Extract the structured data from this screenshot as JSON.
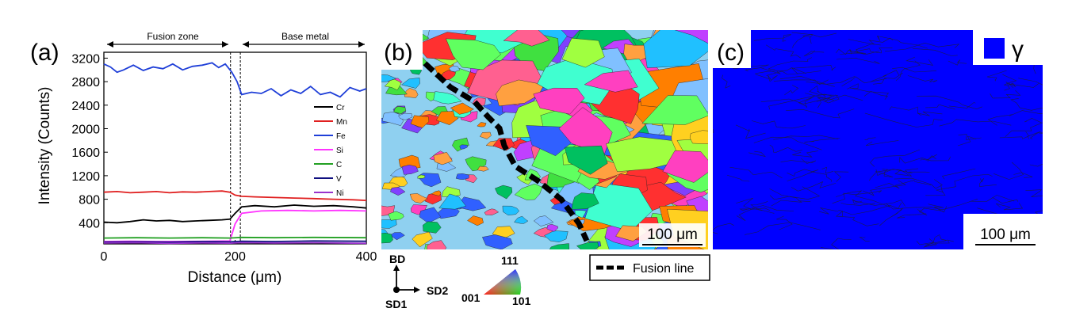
{
  "panels": {
    "a": {
      "label": "(a)",
      "zones": {
        "left": "Fusion zone",
        "right": "Base metal"
      },
      "chart_data": {
        "type": "line",
        "xlabel": "Distance (μm)",
        "ylabel": "Intensity (Counts)",
        "xlim": [
          0,
          400
        ],
        "ylim": [
          40,
          3300
        ],
        "x_ticks": [
          0,
          200,
          400
        ],
        "y_ticks": [
          400,
          800,
          1200,
          1600,
          2000,
          2400,
          2800,
          3200
        ],
        "fusion_boundaries": [
          193,
          208
        ],
        "legend_position": "right",
        "series": [
          {
            "name": "Cr",
            "color": "#000000",
            "x": [
              0,
              20,
              40,
              60,
              80,
              100,
              120,
              140,
              160,
              180,
              192,
              200,
              210,
              230,
              260,
              290,
              320,
              350,
              380,
              400
            ],
            "values": [
              410,
              400,
              420,
              450,
              430,
              440,
              420,
              430,
              440,
              450,
              460,
              560,
              670,
              690,
              670,
              700,
              680,
              690,
              670,
              650
            ]
          },
          {
            "name": "Mn",
            "color": "#e02020",
            "x": [
              0,
              20,
              40,
              60,
              80,
              100,
              120,
              140,
              160,
              180,
              192,
              200,
              210,
              230,
              260,
              290,
              320,
              350,
              380,
              400
            ],
            "values": [
              920,
              930,
              910,
              920,
              930,
              910,
              925,
              920,
              930,
              940,
              920,
              870,
              850,
              840,
              830,
              820,
              810,
              800,
              790,
              780
            ]
          },
          {
            "name": "Fe",
            "color": "#1f3fd8",
            "x": [
              0,
              10,
              20,
              30,
              45,
              60,
              75,
              90,
              105,
              120,
              135,
              150,
              165,
              175,
              185,
              195,
              203,
              210,
              225,
              240,
              255,
              270,
              285,
              300,
              315,
              330,
              345,
              360,
              375,
              390,
              400
            ],
            "values": [
              3100,
              3050,
              2960,
              3000,
              3080,
              2990,
              3050,
              3020,
              3100,
              3000,
              3060,
              3080,
              3120,
              3040,
              3100,
              2960,
              2800,
              2580,
              2620,
              2600,
              2680,
              2560,
              2660,
              2600,
              2720,
              2580,
              2620,
              2540,
              2700,
              2640,
              2680
            ]
          },
          {
            "name": "Si",
            "color": "#ff33ff",
            "x": [
              0,
              40,
              80,
              120,
              160,
              192,
              200,
              210,
              240,
              280,
              320,
              360,
              400
            ],
            "values": [
              80,
              85,
              80,
              82,
              85,
              90,
              380,
              560,
              600,
              610,
              600,
              610,
              600
            ]
          },
          {
            "name": "C",
            "color": "#22a022",
            "x": [
              0,
              50,
              100,
              150,
              192,
              210,
              260,
              320,
              400
            ],
            "values": [
              140,
              145,
              140,
              145,
              140,
              150,
              145,
              150,
              145
            ]
          },
          {
            "name": "V",
            "color": "#101080",
            "x": [
              0,
              50,
              100,
              150,
              192,
              210,
              260,
              320,
              400
            ],
            "values": [
              70,
              75,
              70,
              80,
              75,
              85,
              80,
              90,
              85
            ]
          },
          {
            "name": "Ni",
            "color": "#9933cc",
            "x": [
              0,
              50,
              100,
              150,
              192,
              210,
              260,
              320,
              400
            ],
            "values": [
              55,
              60,
              50,
              58,
              52,
              62,
              55,
              60,
              50
            ]
          }
        ]
      }
    },
    "b": {
      "label": "(b)",
      "scale_bar": "100 μm",
      "fusion_line_legend": "Fusion line",
      "axes": {
        "bd": "BD",
        "sd1": "SD1",
        "sd2": "SD2"
      },
      "ipf": {
        "c111": "111",
        "c001": "001",
        "c101": "101"
      }
    },
    "c": {
      "label": "(c)",
      "phase_symbol": "γ",
      "phase_color": "#0000ff",
      "scale_bar": "100 μm"
    }
  }
}
